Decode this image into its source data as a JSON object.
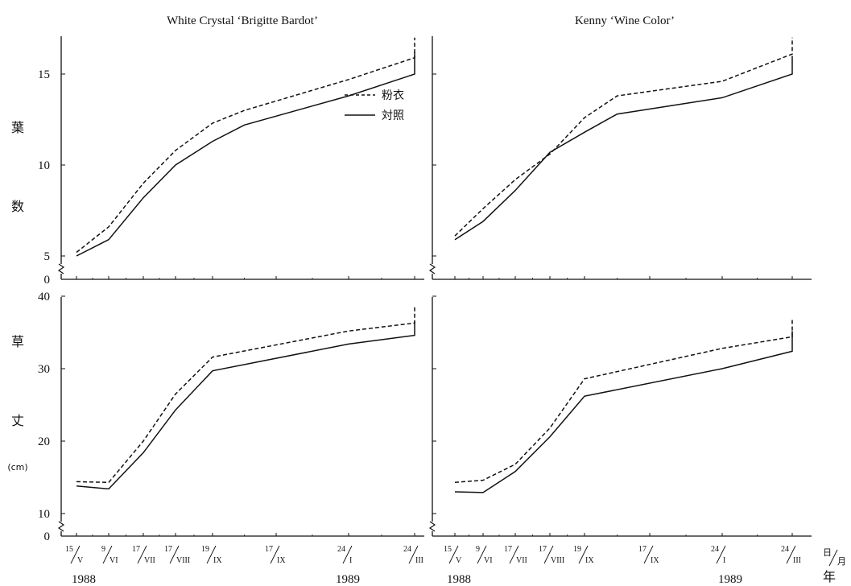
{
  "chart_data": {
    "type": "line",
    "panel_titles": [
      "White Crystal ‘Brigitte Bardot’",
      "Kenny ‘Wine Color’"
    ],
    "x_ticks": [
      {
        "day": "15",
        "month": "V"
      },
      {
        "day": "9",
        "month": "VI"
      },
      {
        "day": "17",
        "month": "VII"
      },
      {
        "day": "17",
        "month": "VIII"
      },
      {
        "day": "19",
        "month": "IX"
      },
      {
        "day": "17",
        "month": "IX"
      },
      {
        "day": "24",
        "month": "I"
      },
      {
        "day": "24",
        "month": "III"
      }
    ],
    "years": [
      "1988",
      "1989"
    ],
    "x_axis_unit": {
      "day": "日",
      "month": "月",
      "year": "年"
    },
    "legend": {
      "dashed": "粉衣",
      "solid": "対照"
    },
    "leaf_axis": {
      "label_chars": [
        "葉",
        "数"
      ],
      "ticks": [
        "0",
        "5",
        "10",
        "15"
      ]
    },
    "height_axis": {
      "label_chars": [
        "草",
        "丈"
      ],
      "unit": "(cm)",
      "ticks": [
        "0",
        "10",
        "20",
        "30",
        "40"
      ]
    },
    "charts": [
      {
        "panel": "White Crystal ‘Brigitte Bardot’",
        "variable": "葉数",
        "ylim": [
          5,
          17
        ],
        "series": [
          {
            "name": "粉衣",
            "style": "dashed",
            "points": [
              [
                0,
                5.2
              ],
              [
                1,
                6.6
              ],
              [
                2,
                9.0
              ],
              [
                3,
                10.8
              ],
              [
                4,
                12.3
              ],
              [
                4.5,
                13.0
              ],
              [
                6,
                14.7
              ],
              [
                7,
                15.9
              ],
              [
                8,
                17.0
              ]
            ]
          },
          {
            "name": "対照",
            "style": "solid",
            "points": [
              [
                0,
                5.0
              ],
              [
                1,
                5.9
              ],
              [
                2,
                8.2
              ],
              [
                3,
                10.0
              ],
              [
                4,
                11.3
              ],
              [
                4.5,
                12.2
              ],
              [
                6,
                13.8
              ],
              [
                7,
                15.0
              ],
              [
                8,
                16.2
              ]
            ]
          }
        ]
      },
      {
        "panel": "Kenny ‘Wine Color’",
        "variable": "葉数",
        "ylim": [
          5,
          17
        ],
        "series": [
          {
            "name": "粉衣",
            "style": "dashed",
            "points": [
              [
                0,
                6.1
              ],
              [
                1,
                7.6
              ],
              [
                2,
                9.2
              ],
              [
                3,
                10.6
              ],
              [
                4,
                12.6
              ],
              [
                4.5,
                13.8
              ],
              [
                6,
                14.6
              ],
              [
                7,
                16.1
              ],
              [
                8,
                17.0
              ]
            ]
          },
          {
            "name": "対照",
            "style": "solid",
            "points": [
              [
                0,
                5.9
              ],
              [
                1,
                6.9
              ],
              [
                2,
                8.6
              ],
              [
                3,
                10.7
              ],
              [
                4,
                11.8
              ],
              [
                4.5,
                12.8
              ],
              [
                6,
                13.7
              ],
              [
                7,
                15.0
              ],
              [
                8,
                16.0
              ]
            ]
          }
        ]
      },
      {
        "panel": "White Crystal ‘Brigitte Bardot’",
        "variable": "草丈(cm)",
        "ylim": [
          10,
          40
        ],
        "series": [
          {
            "name": "粉衣",
            "style": "dashed",
            "points": [
              [
                0,
                14.4
              ],
              [
                1,
                14.3
              ],
              [
                2,
                20.0
              ],
              [
                3,
                26.5
              ],
              [
                4,
                31.6
              ],
              [
                6,
                35.2
              ],
              [
                7,
                36.3
              ],
              [
                8,
                38.8
              ]
            ]
          },
          {
            "name": "対照",
            "style": "solid",
            "points": [
              [
                0,
                13.8
              ],
              [
                1,
                13.4
              ],
              [
                2,
                18.4
              ],
              [
                3,
                24.3
              ],
              [
                4,
                29.7
              ],
              [
                6,
                33.4
              ],
              [
                7,
                34.6
              ],
              [
                8,
                36.5
              ]
            ]
          }
        ]
      },
      {
        "panel": "Kenny ‘Wine Color’",
        "variable": "草丈(cm)",
        "ylim": [
          10,
          40
        ],
        "series": [
          {
            "name": "粉衣",
            "style": "dashed",
            "points": [
              [
                0,
                14.3
              ],
              [
                1,
                14.6
              ],
              [
                2,
                16.8
              ],
              [
                3,
                21.8
              ],
              [
                4,
                28.6
              ],
              [
                6,
                32.8
              ],
              [
                7,
                34.4
              ],
              [
                8,
                36.8
              ]
            ]
          },
          {
            "name": "対照",
            "style": "solid",
            "points": [
              [
                0,
                13.0
              ],
              [
                1,
                12.9
              ],
              [
                2,
                15.8
              ],
              [
                3,
                20.6
              ],
              [
                4,
                26.2
              ],
              [
                6,
                30.0
              ],
              [
                7,
                32.4
              ],
              [
                8,
                35.2
              ]
            ]
          }
        ]
      }
    ]
  }
}
